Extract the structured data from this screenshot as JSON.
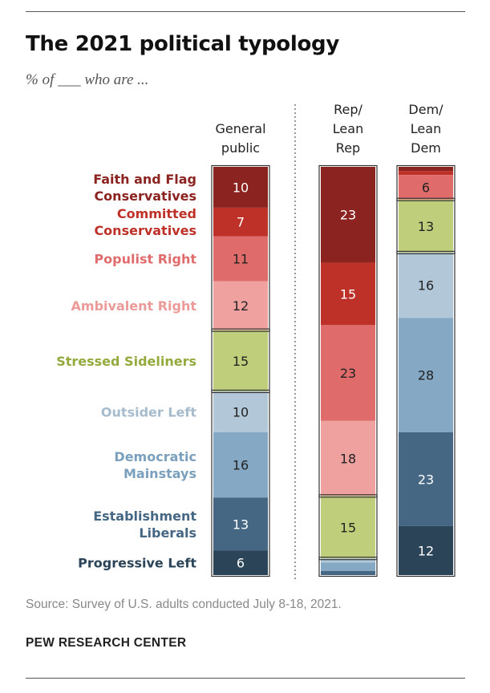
{
  "header": {
    "title": "The 2021 political typology",
    "subtitle": "% of ___ who are ..."
  },
  "footer": {
    "source": "Source: Survey of U.S. adults conducted July 8-18, 2021.",
    "brand": "PEW RESEARCH CENTER"
  },
  "chart_data": {
    "type": "bar",
    "stacked": true,
    "orientation": "vertical",
    "title": "The 2021 political typology",
    "columns": [
      {
        "label_lines": [
          "General",
          "public"
        ]
      },
      {
        "label_lines": [
          "Rep/",
          "Lean",
          "Rep"
        ]
      },
      {
        "label_lines": [
          "Dem/",
          "Lean",
          "Dem"
        ]
      }
    ],
    "groups": [
      {
        "name": "Faith and Flag Conservatives",
        "label_lines": [
          "Faith and Flag",
          "Conservatives"
        ],
        "color": "#8b2320",
        "values": [
          10,
          23,
          1
        ],
        "labels": [
          "10",
          "23",
          ""
        ],
        "text_color": "#ffffff",
        "label_color": "#8b2320"
      },
      {
        "name": "Committed Conservatives",
        "label_lines": [
          "Committed",
          "Conservatives"
        ],
        "color": "#be3128",
        "values": [
          7,
          15,
          1
        ],
        "labels": [
          "7",
          "15",
          ""
        ],
        "text_color": "#ffffff",
        "label_color": "#be3128"
      },
      {
        "name": "Populist Right",
        "label_lines": [
          "Populist Right"
        ],
        "color": "#e06b6b",
        "values": [
          11,
          23,
          6
        ],
        "labels": [
          "11",
          "23",
          "6"
        ],
        "text_color": "#222222",
        "label_color": "#e06b6b"
      },
      {
        "name": "Ambivalent Right",
        "label_lines": [
          "Ambivalent Right"
        ],
        "color": "#efa1a0",
        "values": [
          12,
          18,
          0
        ],
        "labels": [
          "12",
          "18",
          ""
        ],
        "text_color": "#222222",
        "label_color": "#eb9a98"
      },
      {
        "name": "Stressed Sideliners",
        "label_lines": [
          "Stressed Sideliners"
        ],
        "color": "#bfce7a",
        "values": [
          15,
          15,
          13
        ],
        "labels": [
          "15",
          "15",
          "13"
        ],
        "text_color": "#222222",
        "label_color": "#93aa3c"
      },
      {
        "name": "Outsider Left",
        "label_lines": [
          "Outsider Left"
        ],
        "color": "#b2c7d8",
        "values": [
          10,
          1,
          16
        ],
        "labels": [
          "10",
          "",
          "16"
        ],
        "text_color": "#222222",
        "label_color": "#a6bccd"
      },
      {
        "name": "Democratic Mainstays",
        "label_lines": [
          "Democratic",
          "Mainstays"
        ],
        "color": "#85a8c4",
        "values": [
          16,
          2,
          28
        ],
        "labels": [
          "16",
          "",
          "28"
        ],
        "text_color": "#222222",
        "label_color": "#7aa0bd"
      },
      {
        "name": "Establishment Liberals",
        "label_lines": [
          "Establishment",
          "Liberals"
        ],
        "color": "#456783",
        "values": [
          13,
          1,
          23
        ],
        "labels": [
          "13",
          "",
          "23"
        ],
        "text_color": "#ffffff",
        "label_color": "#456783"
      },
      {
        "name": "Progressive Left",
        "label_lines": [
          "Progressive Left"
        ],
        "color": "#2c4458",
        "values": [
          6,
          0,
          12
        ],
        "labels": [
          "6",
          "",
          "12"
        ],
        "text_color": "#ffffff",
        "label_color": "#2c4458"
      }
    ],
    "divider_after_column": 0,
    "clusters": [
      [
        0,
        3
      ],
      [
        4,
        4
      ],
      [
        5,
        8
      ]
    ]
  }
}
